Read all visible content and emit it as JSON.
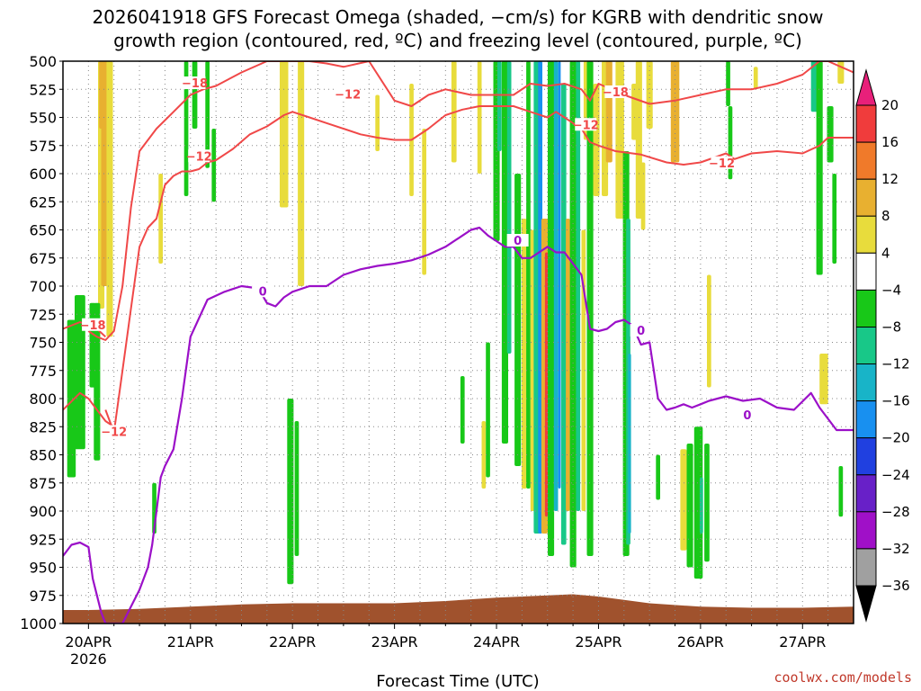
{
  "title_line1": "2026041918 GFS Forecast Omega (shaded, −cm/s) for KGRB with dendritic snow",
  "title_line2": "growth region (contoured, red, ºC) and freezing level (contoured, purple, ºC)",
  "credit": "coolwx.com/models",
  "chart_data": {
    "type": "heatmap",
    "xlabel": "Forecast Time (UTC)",
    "ylabel": "",
    "x_tick_labels": [
      "20APR",
      "21APR",
      "22APR",
      "23APR",
      "24APR",
      "25APR",
      "26APR",
      "27APR"
    ],
    "x_tick_sublabel": "2026",
    "y_tick_labels": [
      "500",
      "525",
      "550",
      "575",
      "600",
      "625",
      "650",
      "675",
      "700",
      "725",
      "750",
      "775",
      "800",
      "825",
      "850",
      "875",
      "900",
      "925",
      "950",
      "975",
      "1000"
    ],
    "ylim": [
      1000,
      500
    ],
    "xlim_hours": [
      -6,
      180
    ],
    "colorbar": {
      "labels": [
        "20",
        "16",
        "12",
        "8",
        "4",
        "−4",
        "−8",
        "−12",
        "−16",
        "−20",
        "−24",
        "−28",
        "−32",
        "−36"
      ],
      "colors": [
        "#e8207a",
        "#f03c3c",
        "#f07a2a",
        "#e8b030",
        "#e8dc3c",
        "#ffffff",
        "#18c818",
        "#18c888",
        "#18b4c8",
        "#1890f0",
        "#2040e0",
        "#6820c8",
        "#a010c8",
        "#a0a0a0",
        "#000000"
      ]
    },
    "contour_labels": [
      "−18",
      "−12",
      "0"
    ],
    "shading_colors": {
      "green": "#18c818",
      "teal": "#18c888",
      "cyan": "#18b4c8",
      "blue": "#1890f0",
      "yellow": "#e8dc3c",
      "orange": "#e8b030",
      "red": "#f03c3c",
      "ground": "#a0522d",
      "dgz": "#f04848",
      "freezing": "#9b10c8"
    },
    "shading": [
      {
        "hour": -2,
        "p0": 708,
        "p1": 845,
        "w": 2.5,
        "c": "green"
      },
      {
        "hour": -4,
        "p0": 730,
        "p1": 870,
        "w": 2,
        "c": "green"
      },
      {
        "hour": 1,
        "p0": 715,
        "p1": 790,
        "w": 1.5,
        "c": "green"
      },
      {
        "hour": 3,
        "p0": 500,
        "p1": 720,
        "w": 1.5,
        "c": "yellow"
      },
      {
        "hour": 3,
        "p0": 500,
        "p1": 560,
        "w": 1,
        "c": "orange"
      },
      {
        "hour": 4,
        "p0": 500,
        "p1": 700,
        "w": 2,
        "c": "orange"
      },
      {
        "hour": 5,
        "p0": 500,
        "p1": 745,
        "w": 1.5,
        "c": "yellow"
      },
      {
        "hour": 2,
        "p0": 715,
        "p1": 855,
        "w": 1.5,
        "c": "green"
      },
      {
        "hour": 15.5,
        "p0": 875,
        "p1": 920,
        "w": 1,
        "c": "green"
      },
      {
        "hour": 17,
        "p0": 600,
        "p1": 680,
        "w": 1,
        "c": "yellow"
      },
      {
        "hour": 23,
        "p0": 500,
        "p1": 620,
        "w": 1,
        "c": "green"
      },
      {
        "hour": 25,
        "p0": 500,
        "p1": 560,
        "w": 1.2,
        "c": "green"
      },
      {
        "hour": 28,
        "p0": 500,
        "p1": 595,
        "w": 1,
        "c": "green"
      },
      {
        "hour": 29.5,
        "p0": 560,
        "p1": 625,
        "w": 1,
        "c": "green"
      },
      {
        "hour": 46,
        "p0": 500,
        "p1": 630,
        "w": 2,
        "c": "yellow"
      },
      {
        "hour": 50,
        "p0": 500,
        "p1": 700,
        "w": 1.5,
        "c": "yellow"
      },
      {
        "hour": 47.5,
        "p0": 800,
        "p1": 965,
        "w": 1.5,
        "c": "green"
      },
      {
        "hour": 49,
        "p0": 820,
        "p1": 940,
        "w": 1,
        "c": "green"
      },
      {
        "hour": 68,
        "p0": 530,
        "p1": 580,
        "w": 1,
        "c": "yellow"
      },
      {
        "hour": 76,
        "p0": 520,
        "p1": 620,
        "w": 1,
        "c": "yellow"
      },
      {
        "hour": 79,
        "p0": 560,
        "p1": 690,
        "w": 1,
        "c": "yellow"
      },
      {
        "hour": 86,
        "p0": 500,
        "p1": 590,
        "w": 1.2,
        "c": "yellow"
      },
      {
        "hour": 88,
        "p0": 780,
        "p1": 840,
        "w": 1,
        "c": "green"
      },
      {
        "hour": 92,
        "p0": 500,
        "p1": 600,
        "w": 1,
        "c": "yellow"
      },
      {
        "hour": 93,
        "p0": 820,
        "p1": 880,
        "w": 1,
        "c": "yellow"
      },
      {
        "hour": 94,
        "p0": 750,
        "p1": 870,
        "w": 1,
        "c": "green"
      },
      {
        "hour": 96,
        "p0": 500,
        "p1": 660,
        "w": 1.5,
        "c": "green"
      },
      {
        "hour": 96.7,
        "p0": 500,
        "p1": 580,
        "w": 1,
        "c": "teal"
      },
      {
        "hour": 98,
        "p0": 500,
        "p1": 840,
        "w": 1.5,
        "c": "green"
      },
      {
        "hour": 99,
        "p0": 500,
        "p1": 760,
        "w": 1,
        "c": "teal"
      },
      {
        "hour": 101,
        "p0": 600,
        "p1": 860,
        "w": 1.5,
        "c": "green"
      },
      {
        "hour": 102.5,
        "p0": 640,
        "p1": 880,
        "w": 1.2,
        "c": "yellow"
      },
      {
        "hour": 103.5,
        "p0": 500,
        "p1": 880,
        "w": 1,
        "c": "green"
      },
      {
        "hour": 104.5,
        "p0": 650,
        "p1": 900,
        "w": 1,
        "c": "yellow"
      },
      {
        "hour": 105.5,
        "p0": 500,
        "p1": 920,
        "w": 1.5,
        "c": "teal"
      },
      {
        "hour": 106.3,
        "p0": 500,
        "p1": 920,
        "w": 1,
        "c": "blue"
      },
      {
        "hour": 107.3,
        "p0": 640,
        "p1": 920,
        "w": 1.5,
        "c": "orange"
      },
      {
        "hour": 107.8,
        "p0": 670,
        "p1": 905,
        "w": 0.8,
        "c": "red"
      },
      {
        "hour": 108.8,
        "p0": 500,
        "p1": 940,
        "w": 1.5,
        "c": "green"
      },
      {
        "hour": 110,
        "p0": 500,
        "p1": 900,
        "w": 1,
        "c": "cyan"
      },
      {
        "hour": 110.8,
        "p0": 500,
        "p1": 880,
        "w": 0.6,
        "c": "blue"
      },
      {
        "hour": 111.8,
        "p0": 520,
        "p1": 930,
        "w": 1.2,
        "c": "teal"
      },
      {
        "hour": 112.8,
        "p0": 640,
        "p1": 900,
        "w": 1,
        "c": "orange"
      },
      {
        "hour": 114,
        "p0": 500,
        "p1": 950,
        "w": 1.5,
        "c": "green"
      },
      {
        "hour": 115.2,
        "p0": 500,
        "p1": 900,
        "w": 1,
        "c": "teal"
      },
      {
        "hour": 116.5,
        "p0": 650,
        "p1": 900,
        "w": 1,
        "c": "yellow"
      },
      {
        "hour": 117.5,
        "p0": 500,
        "p1": 570,
        "w": 2,
        "c": "yellow"
      },
      {
        "hour": 118,
        "p0": 500,
        "p1": 940,
        "w": 1.5,
        "c": "green"
      },
      {
        "hour": 119.5,
        "p0": 520,
        "p1": 620,
        "w": 1.5,
        "c": "yellow"
      },
      {
        "hour": 121.5,
        "p0": 500,
        "p1": 620,
        "w": 1.5,
        "c": "yellow"
      },
      {
        "hour": 122.5,
        "p0": 500,
        "p1": 590,
        "w": 1.5,
        "c": "orange"
      },
      {
        "hour": 125,
        "p0": 500,
        "p1": 640,
        "w": 2,
        "c": "yellow"
      },
      {
        "hour": 126.5,
        "p0": 580,
        "p1": 940,
        "w": 1.5,
        "c": "green"
      },
      {
        "hour": 127,
        "p0": 640,
        "p1": 930,
        "w": 1,
        "c": "teal"
      },
      {
        "hour": 127.3,
        "p0": 760,
        "p1": 920,
        "w": 0.7,
        "c": "cyan"
      },
      {
        "hour": 128.5,
        "p0": 520,
        "p1": 570,
        "w": 1.5,
        "c": "yellow"
      },
      {
        "hour": 129.5,
        "p0": 500,
        "p1": 640,
        "w": 1.5,
        "c": "yellow"
      },
      {
        "hour": 130.5,
        "p0": 590,
        "p1": 650,
        "w": 1,
        "c": "yellow"
      },
      {
        "hour": 132,
        "p0": 500,
        "p1": 560,
        "w": 1.5,
        "c": "yellow"
      },
      {
        "hour": 134,
        "p0": 850,
        "p1": 890,
        "w": 1,
        "c": "green"
      },
      {
        "hour": 138,
        "p0": 500,
        "p1": 590,
        "w": 2,
        "c": "orange"
      },
      {
        "hour": 140,
        "p0": 845,
        "p1": 935,
        "w": 1.5,
        "c": "yellow"
      },
      {
        "hour": 141.5,
        "p0": 840,
        "p1": 950,
        "w": 1.5,
        "c": "green"
      },
      {
        "hour": 143.5,
        "p0": 825,
        "p1": 960,
        "w": 2,
        "c": "green"
      },
      {
        "hour": 144.2,
        "p0": 870,
        "p1": 920,
        "w": 0.8,
        "c": "teal"
      },
      {
        "hour": 145.5,
        "p0": 840,
        "p1": 945,
        "w": 1.2,
        "c": "green"
      },
      {
        "hour": 146,
        "p0": 690,
        "p1": 790,
        "w": 1,
        "c": "yellow"
      },
      {
        "hour": 150.5,
        "p0": 500,
        "p1": 540,
        "w": 1,
        "c": "green"
      },
      {
        "hour": 151,
        "p0": 540,
        "p1": 605,
        "w": 1,
        "c": "green"
      },
      {
        "hour": 157,
        "p0": 505,
        "p1": 525,
        "w": 1,
        "c": "yellow"
      },
      {
        "hour": 171,
        "p0": 500,
        "p1": 545,
        "w": 2,
        "c": "teal"
      },
      {
        "hour": 172,
        "p0": 500,
        "p1": 690,
        "w": 1.5,
        "c": "green"
      },
      {
        "hour": 173,
        "p0": 760,
        "p1": 805,
        "w": 2,
        "c": "yellow"
      },
      {
        "hour": 174.5,
        "p0": 540,
        "p1": 590,
        "w": 1.5,
        "c": "green"
      },
      {
        "hour": 175.5,
        "p0": 600,
        "p1": 680,
        "w": 1,
        "c": "green"
      },
      {
        "hour": 177,
        "p0": 500,
        "p1": 520,
        "w": 1.5,
        "c": "yellow"
      },
      {
        "hour": 177,
        "p0": 860,
        "p1": 905,
        "w": 1,
        "c": "green"
      }
    ],
    "ground": {
      "hours": [
        -6,
        0,
        12,
        24,
        36,
        48,
        60,
        72,
        84,
        96,
        102,
        108,
        114,
        120,
        132,
        144,
        156,
        168,
        180
      ],
      "pressure": [
        988,
        988,
        987,
        985,
        983,
        982,
        982,
        982,
        980,
        977,
        976,
        975,
        974,
        976,
        982,
        985,
        986,
        986,
        985
      ]
    },
    "dgz_upper": {
      "hours": [
        0,
        2,
        4,
        6,
        8,
        10,
        12,
        16,
        20,
        24,
        27,
        30,
        36,
        42,
        46,
        48,
        52,
        56,
        60,
        66,
        72,
        76,
        80,
        84,
        90,
        96,
        100,
        104,
        108,
        112,
        116,
        118,
        120,
        126,
        132,
        138,
        144,
        150,
        156,
        162,
        168,
        172,
        174,
        180
      ],
      "pressure": [
        740,
        745,
        748,
        740,
        700,
        630,
        580,
        560,
        545,
        530,
        525,
        522,
        510,
        500,
        500,
        500,
        500,
        502,
        505,
        500,
        535,
        540,
        530,
        525,
        530,
        530,
        530,
        520,
        522,
        520,
        525,
        535,
        520,
        530,
        538,
        535,
        530,
        525,
        525,
        520,
        512,
        500,
        500,
        510
      ]
    },
    "dgz_lower": {
      "hours": [
        4,
        6,
        8,
        10,
        12,
        14,
        16,
        18,
        20,
        22,
        24,
        26,
        28,
        30,
        34,
        38,
        42,
        46,
        48,
        52,
        56,
        60,
        64,
        68,
        72,
        76,
        80,
        84,
        88,
        92,
        96,
        100,
        104,
        108,
        110,
        112,
        114,
        116,
        118,
        120,
        124,
        130,
        136,
        140,
        144,
        150,
        152,
        156,
        162,
        168,
        172,
        174,
        180
      ],
      "pressure": [
        810,
        830,
        775,
        720,
        665,
        648,
        640,
        610,
        602,
        598,
        598,
        596,
        590,
        588,
        578,
        565,
        558,
        548,
        545,
        550,
        555,
        560,
        565,
        568,
        570,
        570,
        560,
        548,
        543,
        540,
        540,
        540,
        545,
        550,
        545,
        550,
        555,
        560,
        572,
        575,
        580,
        583,
        590,
        592,
        590,
        582,
        587,
        582,
        580,
        582,
        575,
        568,
        568
      ]
    },
    "dgz_lowlevel": {
      "hours": [
        -6,
        -2,
        0,
        2,
        4,
        6
      ],
      "pressure": [
        810,
        795,
        800,
        810,
        820,
        825
      ]
    },
    "dgz_lowlevel_upper": {
      "hours": [
        -6,
        -2,
        0,
        2,
        4
      ],
      "pressure": [
        738,
        732,
        735,
        738,
        745
      ]
    },
    "freezing_level": {
      "hours": [
        -6,
        -4,
        -2,
        0,
        1,
        2,
        3,
        4,
        6,
        8,
        10,
        12,
        14,
        15,
        16,
        17,
        18,
        20,
        22,
        24,
        28,
        32,
        36,
        40,
        42,
        44,
        46,
        48,
        52,
        56,
        60,
        64,
        68,
        72,
        76,
        80,
        84,
        88,
        90,
        92,
        94,
        96,
        98,
        100,
        102,
        104,
        106,
        108,
        110,
        112,
        114,
        116,
        118,
        120,
        122,
        124,
        126,
        128,
        130,
        132,
        134,
        136,
        138,
        140,
        142,
        144,
        146,
        150,
        154,
        158,
        162,
        166,
        170,
        172,
        176,
        180
      ],
      "pressure": [
        940,
        930,
        928,
        932,
        960,
        975,
        990,
        1000,
        1000,
        1000,
        985,
        970,
        950,
        930,
        900,
        870,
        860,
        845,
        800,
        745,
        712,
        705,
        700,
        702,
        715,
        718,
        710,
        705,
        700,
        700,
        690,
        685,
        682,
        680,
        677,
        672,
        665,
        655,
        650,
        648,
        655,
        660,
        665,
        665,
        675,
        675,
        670,
        665,
        670,
        670,
        680,
        690,
        738,
        740,
        738,
        732,
        730,
        735,
        752,
        750,
        800,
        810,
        808,
        805,
        808,
        805,
        802,
        798,
        802,
        800,
        808,
        810,
        795,
        808,
        828,
        828
      ]
    }
  }
}
